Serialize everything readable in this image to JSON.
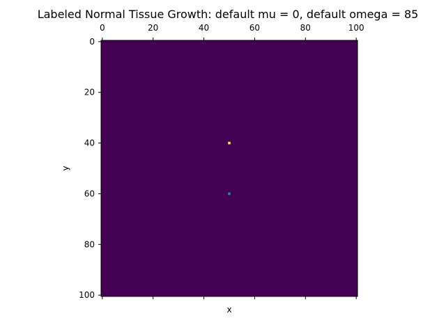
{
  "chart_data": {
    "type": "heatmap",
    "title": "Labeled Normal Tissue Growth: default mu = 0, default omega = 85",
    "xlabel": "x",
    "ylabel": "y",
    "xlim": [
      0,
      101
    ],
    "ylim": [
      101,
      0
    ],
    "x_ticks": [
      0,
      20,
      40,
      60,
      80,
      100
    ],
    "y_ticks": [
      0,
      20,
      40,
      60,
      80,
      100
    ],
    "x_tick_labels": [
      "0",
      "20",
      "40",
      "60",
      "80",
      "100"
    ],
    "y_tick_labels": [
      "0",
      "20",
      "40",
      "60",
      "80",
      "100"
    ],
    "x_axis_ticks_position": "top",
    "bottom_tick_marks": "unlabeled",
    "grid": false,
    "colormap": "viridis",
    "background_value": 0,
    "background_color": "#440154",
    "cells": [
      {
        "x": 50,
        "y": 40,
        "value": 1,
        "color": "#fde725"
      },
      {
        "x": 50,
        "y": 60,
        "value": 0.5,
        "color": "#21918c"
      }
    ]
  }
}
